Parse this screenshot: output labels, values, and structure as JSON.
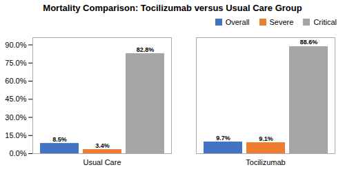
{
  "chart_data": {
    "type": "bar",
    "title": "Mortality Comparison: Tocilizumab versus Usual Care Group",
    "categories": [
      "Usual Care",
      "Tocilizumab"
    ],
    "series": [
      {
        "name": "Overall",
        "color": "#4472C4",
        "values": [
          8.5,
          9.7
        ],
        "value_labels": [
          "8.5%",
          "9.7%"
        ]
      },
      {
        "name": "Severe",
        "color": "#ED7D31",
        "values": [
          3.4,
          9.1
        ],
        "value_labels": [
          "3.4%",
          "9.1%"
        ]
      },
      {
        "name": "Critical",
        "color": "#A5A5A5",
        "values": [
          82.8,
          88.6
        ],
        "value_labels": [
          "82.8%",
          "88.6%"
        ]
      }
    ],
    "ylim": [
      0,
      96
    ],
    "yticks": [
      {
        "value": 0,
        "label": "0.0%"
      },
      {
        "value": 15,
        "label": "15.0%"
      },
      {
        "value": 30,
        "label": "30.0%"
      },
      {
        "value": 45,
        "label": "45.0%"
      },
      {
        "value": 60,
        "label": "60.0%"
      },
      {
        "value": 75,
        "label": "75.0%"
      },
      {
        "value": 90,
        "label": "90.0%"
      }
    ],
    "grid": false,
    "legend": "upper right",
    "data_labels": true
  }
}
